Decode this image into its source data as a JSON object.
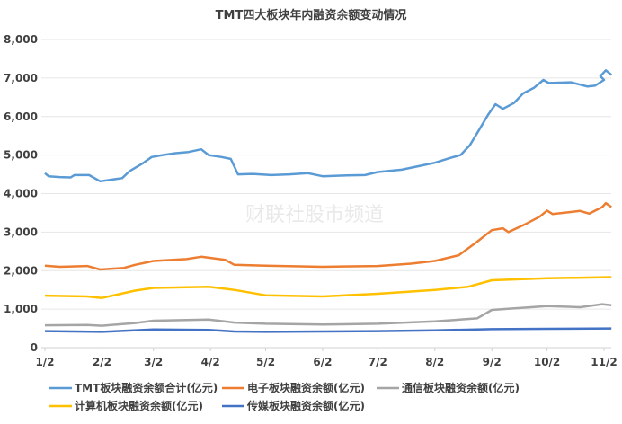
{
  "chart_data": {
    "type": "line",
    "title": "TMT四大板块年内融资余额变动情况",
    "xlabel": "",
    "ylabel": "",
    "ylim": [
      0,
      8000
    ],
    "yticks": [
      "0",
      "1,000",
      "2,000",
      "3,000",
      "4,000",
      "5,000",
      "6,000",
      "7,000",
      "8,000"
    ],
    "xticks": [
      "1/2",
      "2/2",
      "3/2",
      "4/2",
      "5/2",
      "6/2",
      "7/2",
      "8/2",
      "9/2",
      "10/2",
      "11/2"
    ],
    "grid": "horizontal",
    "legend_position": "bottom",
    "watermark": "财联社股市频道",
    "series": [
      {
        "name": "TMT板块融资余额合计(亿元)",
        "color": "#5b9bd5",
        "x": [
          "1/2",
          "1/4",
          "1/10",
          "1/16",
          "1/18",
          "1/26",
          "2/1",
          "2/13",
          "2/17",
          "2/24",
          "3/1",
          "3/7",
          "3/14",
          "3/21",
          "3/28",
          "4/1",
          "4/8",
          "4/13",
          "4/17",
          "4/25",
          "5/5",
          "5/15",
          "5/25",
          "6/2",
          "6/15",
          "6/25",
          "7/2",
          "7/15",
          "7/25",
          "8/2",
          "8/10",
          "8/16",
          "8/21",
          "8/26",
          "8/31",
          "9/4",
          "9/8",
          "9/14",
          "9/19",
          "9/25",
          "9/30",
          "10/3",
          "10/15",
          "10/24",
          "10/28",
          "11/2",
          "10/31",
          "11/3",
          "11/6"
        ],
        "y": [
          4530,
          4450,
          4430,
          4420,
          4480,
          4480,
          4320,
          4400,
          4580,
          4780,
          4950,
          5000,
          5050,
          5080,
          5150,
          5000,
          4950,
          4900,
          4500,
          4510,
          4480,
          4500,
          4530,
          4450,
          4470,
          4480,
          4560,
          4620,
          4720,
          4800,
          4920,
          5000,
          5250,
          5650,
          6050,
          6320,
          6200,
          6350,
          6600,
          6750,
          6950,
          6870,
          6890,
          6780,
          6800,
          6950,
          7050,
          7200,
          7080
        ]
      },
      {
        "name": "电子板块融资余额(亿元)",
        "color": "#ed7d31",
        "x": [
          "1/2",
          "1/10",
          "1/25",
          "2/1",
          "2/14",
          "2/20",
          "3/2",
          "3/20",
          "3/28",
          "4/10",
          "4/15",
          "5/2",
          "6/2",
          "7/2",
          "7/20",
          "8/2",
          "8/15",
          "8/25",
          "9/2",
          "9/8",
          "9/11",
          "9/20",
          "9/28",
          "10/2",
          "10/5",
          "10/20",
          "10/25",
          "11/1",
          "11/3",
          "11/6"
        ],
        "y": [
          2130,
          2100,
          2120,
          2030,
          2070,
          2150,
          2250,
          2300,
          2360,
          2280,
          2150,
          2130,
          2100,
          2120,
          2180,
          2250,
          2400,
          2750,
          3050,
          3100,
          3000,
          3200,
          3400,
          3560,
          3470,
          3550,
          3480,
          3650,
          3750,
          3650
        ]
      },
      {
        "name": "通信板块融资余额(亿元)",
        "color": "#a5a5a5",
        "x": [
          "1/2",
          "1/25",
          "2/2",
          "2/20",
          "3/2",
          "4/1",
          "4/15",
          "5/2",
          "6/2",
          "7/2",
          "8/2",
          "8/25",
          "9/2",
          "10/2",
          "10/20",
          "11/1",
          "11/6"
        ],
        "y": [
          580,
          590,
          570,
          640,
          700,
          730,
          650,
          620,
          600,
          620,
          680,
          760,
          980,
          1080,
          1050,
          1130,
          1100
        ]
      },
      {
        "name": "计算机板块融资余额(亿元)",
        "color": "#ffc000",
        "x": [
          "1/2",
          "1/25",
          "2/2",
          "2/20",
          "3/2",
          "4/1",
          "4/15",
          "5/2",
          "6/2",
          "7/2",
          "8/2",
          "8/20",
          "9/2",
          "10/2",
          "11/6"
        ],
        "y": [
          1350,
          1330,
          1290,
          1480,
          1550,
          1580,
          1500,
          1360,
          1330,
          1400,
          1500,
          1580,
          1750,
          1800,
          1830
        ]
      },
      {
        "name": "传媒板块融资余额(亿元)",
        "color": "#4472c4",
        "x": [
          "1/2",
          "2/2",
          "3/2",
          "4/1",
          "4/15",
          "5/2",
          "6/2",
          "7/2",
          "8/2",
          "9/2",
          "10/2",
          "11/6"
        ],
        "y": [
          430,
          410,
          470,
          460,
          420,
          410,
          420,
          430,
          450,
          480,
          490,
          500
        ]
      }
    ]
  }
}
